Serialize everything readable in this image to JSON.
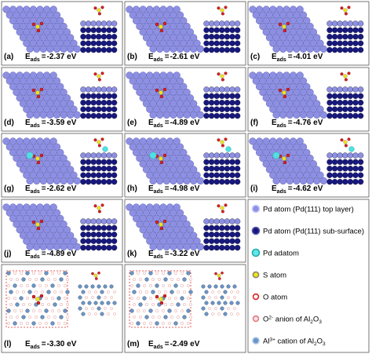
{
  "energy_symbol": "E",
  "energy_subscript": "ads",
  "equals": "=",
  "panels": [
    {
      "label": "(a)",
      "energy": "-2.37 eV"
    },
    {
      "label": "(b)",
      "energy": "-2.61 eV"
    },
    {
      "label": "(c)",
      "energy": "-4.01 eV"
    },
    {
      "label": "(d)",
      "energy": "-3.59 eV"
    },
    {
      "label": "(e)",
      "energy": "-4.89 eV"
    },
    {
      "label": "(f)",
      "energy": "-4.76 eV"
    },
    {
      "label": "(g)",
      "energy": "-2.62 eV"
    },
    {
      "label": "(h)",
      "energy": "-4.98 eV"
    },
    {
      "label": "(i)",
      "energy": "-4.62 eV"
    },
    {
      "label": "(j)",
      "energy": "-4.89 eV"
    },
    {
      "label": "(k)",
      "energy": "-3.22 eV"
    },
    {
      "label": "(l)",
      "energy": "-3.30 eV"
    },
    {
      "label": "(m)",
      "energy": "-2.49 eV"
    }
  ],
  "legend": [
    {
      "parts": [
        "Pd atom (Pd(111) top layer)"
      ]
    },
    {
      "parts": [
        "Pd atom (Pd(111) sub-surface)"
      ]
    },
    {
      "parts": [
        "Pd adatom"
      ]
    },
    {
      "parts": [
        "S atom"
      ]
    },
    {
      "parts": [
        "O atom"
      ]
    },
    {
      "parts": [
        "O",
        "2-",
        " anion of Al",
        "2",
        "O",
        "3"
      ]
    },
    {
      "parts": [
        "Al",
        "3+",
        " cation of Al",
        "2",
        "O",
        "3"
      ]
    }
  ]
}
